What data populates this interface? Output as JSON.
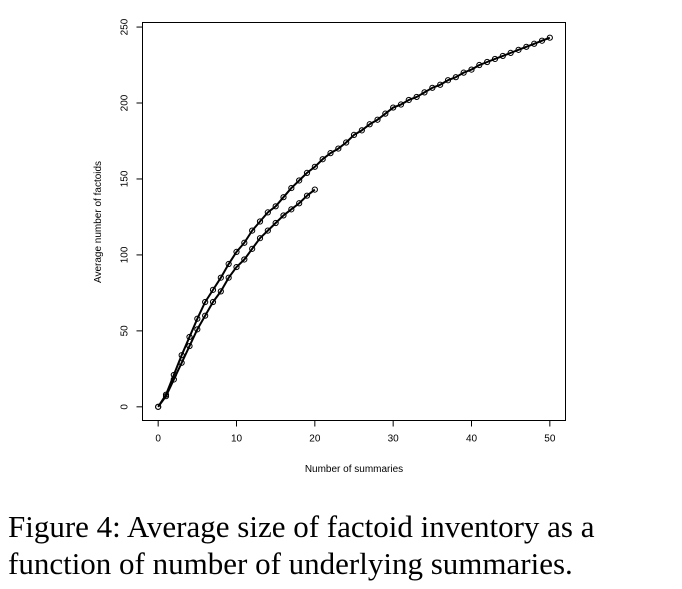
{
  "chart_data": {
    "type": "line",
    "xlabel": "Number of summaries",
    "ylabel": "Average number of factoids",
    "xlim": [
      -2,
      52
    ],
    "ylim": [
      -9,
      253
    ],
    "xticks": [
      0,
      10,
      20,
      30,
      40,
      50
    ],
    "yticks": [
      0,
      50,
      100,
      150,
      200,
      250
    ],
    "grid": false,
    "marker": "open-circle",
    "series": [
      {
        "x": [
          0,
          1,
          2,
          3,
          4,
          5,
          6,
          7,
          8,
          9,
          10,
          11,
          12,
          13,
          14,
          15,
          16,
          17,
          18,
          19,
          20,
          21,
          22,
          23,
          24,
          25,
          26,
          27,
          28,
          29,
          30,
          31,
          32,
          33,
          34,
          35,
          36,
          37,
          38,
          39,
          40,
          41,
          42,
          43,
          44,
          45,
          46,
          47,
          48,
          49,
          50
        ],
        "values": [
          0,
          8,
          21,
          34,
          46,
          58,
          69,
          77,
          85,
          94,
          102,
          108,
          116,
          122,
          128,
          132,
          138,
          144,
          149,
          154,
          158,
          163,
          167,
          170,
          174,
          179,
          182,
          186,
          189,
          193,
          197,
          199,
          202,
          204,
          207,
          210,
          212,
          215,
          217,
          220,
          222,
          225,
          227,
          229,
          231,
          233,
          235,
          237,
          239,
          241,
          243
        ]
      },
      {
        "x": [
          0,
          1,
          2,
          3,
          4,
          5,
          6,
          7,
          8,
          9,
          10,
          11,
          12,
          13,
          14,
          15,
          16,
          17,
          18,
          19,
          20
        ],
        "values": [
          0,
          7,
          18,
          29,
          40,
          51,
          60,
          69,
          76,
          85,
          92,
          97,
          104,
          111,
          116,
          121,
          126,
          130,
          134,
          139,
          143
        ]
      }
    ]
  },
  "caption": "Figure 4: Average size of factoid inventory as a function of number of underlying summaries."
}
